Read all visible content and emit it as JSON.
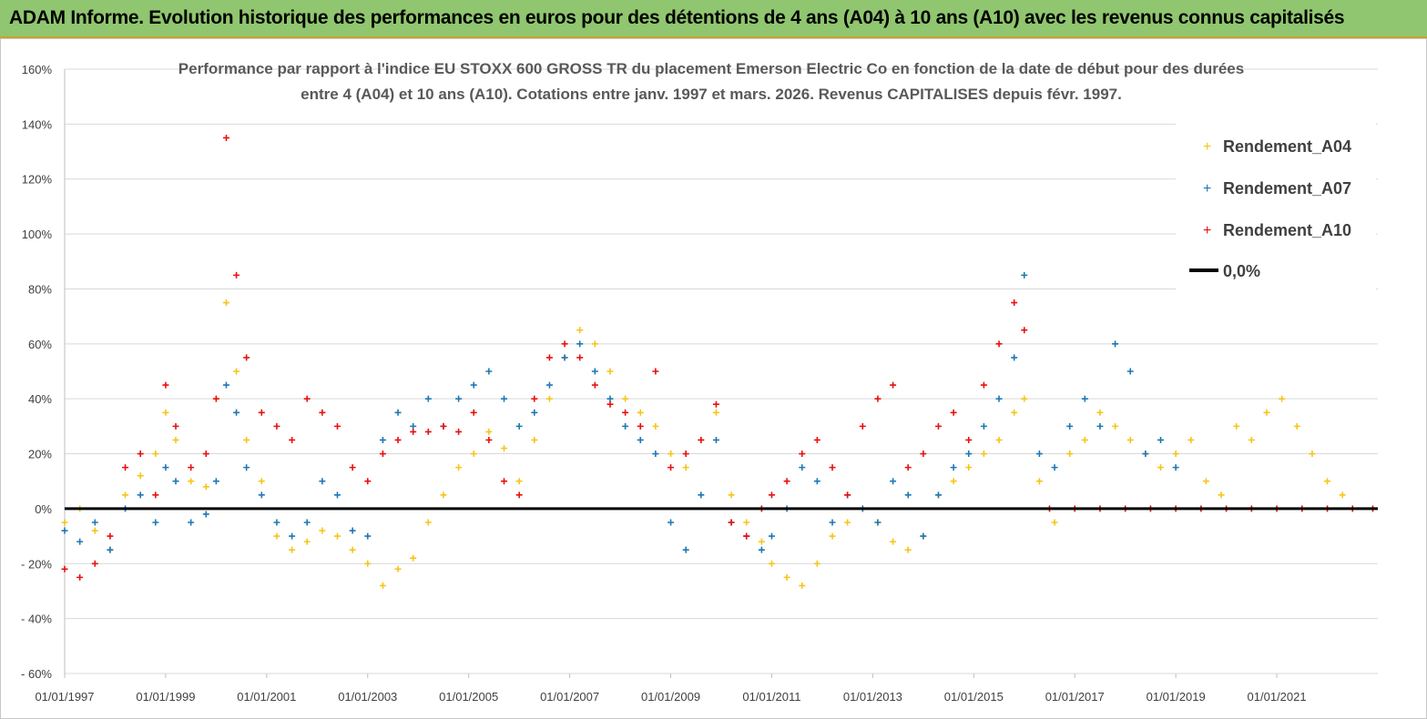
{
  "header": {
    "banner_title": "ADAM Informe. Evolution historique des performances en euros pour des détentions de 4 ans (A04) à 10 ans (A10) avec les revenus connus capitalisés"
  },
  "colors": {
    "banner_bg": "#90c66f",
    "A04": "#f5c518",
    "A07": "#1f77b4",
    "A10": "#e81010",
    "zero_line": "#000000"
  },
  "chart_data": {
    "type": "scatter",
    "title_lines": [
      "Performance par rapport à l'indice EU STOXX 600 GROSS TR  du placement Emerson Electric Co en fonction de la date de début pour des durées",
      "entre 4 (A04) et 10 ans (A10). Cotations entre janv. 1997 et mars. 2026. Revenus CAPITALISES depuis févr. 1997."
    ],
    "x_range": [
      1997.0,
      2023.0
    ],
    "y_range": [
      -60,
      160
    ],
    "y_ticks": [
      -60,
      -40,
      -20,
      0,
      20,
      40,
      60,
      80,
      100,
      120,
      140,
      160
    ],
    "y_tick_labels": [
      "- 60%",
      "- 40%",
      "- 20%",
      "0%",
      "20%",
      "40%",
      "60%",
      "80%",
      "100%",
      "120%",
      "140%",
      "160%"
    ],
    "x_ticks": [
      1997,
      1999,
      2001,
      2003,
      2005,
      2007,
      2009,
      2011,
      2013,
      2015,
      2017,
      2019,
      2021
    ],
    "x_tick_labels": [
      "01/01/1997",
      "01/01/1999",
      "01/01/2001",
      "01/01/2003",
      "01/01/2005",
      "01/01/2007",
      "01/01/2009",
      "01/01/2011",
      "01/01/2013",
      "01/01/2015",
      "01/01/2017",
      "01/01/2019",
      "01/01/2021"
    ],
    "legend": [
      "Rendement_A04",
      "Rendement_A07",
      "Rendement_A10",
      "0,0%"
    ],
    "series": [
      {
        "name": "Rendement_A04",
        "color_key": "A04",
        "x": [
          1997.0,
          1997.3,
          1997.6,
          1997.9,
          1998.2,
          1998.5,
          1998.8,
          1999.0,
          1999.2,
          1999.5,
          1999.8,
          2000.0,
          2000.2,
          2000.4,
          2000.6,
          2000.9,
          2001.2,
          2001.5,
          2001.8,
          2002.1,
          2002.4,
          2002.7,
          2003.0,
          2003.3,
          2003.6,
          2003.9,
          2004.2,
          2004.5,
          2004.8,
          2005.1,
          2005.4,
          2005.7,
          2006.0,
          2006.3,
          2006.6,
          2006.9,
          2007.2,
          2007.5,
          2007.8,
          2008.1,
          2008.4,
          2008.7,
          2009.0,
          2009.3,
          2009.6,
          2009.9,
          2010.2,
          2010.5,
          2010.8,
          2011.0,
          2011.3,
          2011.6,
          2011.9,
          2012.2,
          2012.5,
          2012.8,
          2013.1,
          2013.4,
          2013.7,
          2014.0,
          2014.3,
          2014.6,
          2014.9,
          2015.2,
          2015.5,
          2015.8,
          2016.0,
          2016.3,
          2016.6,
          2016.9,
          2017.2,
          2017.5,
          2017.8,
          2018.1,
          2018.4,
          2018.7,
          2019.0,
          2019.3,
          2019.6,
          2019.9,
          2020.2,
          2020.5,
          2020.8,
          2021.1,
          2021.4,
          2021.7,
          2022.0,
          2022.3
        ],
        "y": [
          -5,
          0,
          -8,
          -15,
          5,
          12,
          20,
          35,
          25,
          10,
          8,
          40,
          75,
          50,
          25,
          10,
          -10,
          -15,
          -12,
          -8,
          -10,
          -15,
          -20,
          -28,
          -22,
          -18,
          -5,
          5,
          15,
          20,
          28,
          22,
          10,
          25,
          40,
          55,
          65,
          60,
          50,
          40,
          35,
          30,
          20,
          15,
          25,
          35,
          5,
          -5,
          -12,
          -20,
          -25,
          -28,
          -20,
          -10,
          -5,
          0,
          -5,
          -12,
          -15,
          -10,
          5,
          10,
          15,
          20,
          25,
          35,
          40,
          10,
          -5,
          20,
          25,
          35,
          30,
          25,
          20,
          15,
          20,
          25,
          10,
          5,
          30,
          25,
          35,
          40,
          30,
          20,
          10,
          5
        ]
      },
      {
        "name": "Rendement_A07",
        "color_key": "A07",
        "x": [
          1997.0,
          1997.3,
          1997.6,
          1997.9,
          1998.2,
          1998.5,
          1998.8,
          1999.0,
          1999.2,
          1999.5,
          1999.8,
          2000.0,
          2000.2,
          2000.4,
          2000.6,
          2000.9,
          2001.2,
          2001.5,
          2001.8,
          2002.1,
          2002.4,
          2002.7,
          2003.0,
          2003.3,
          2003.6,
          2003.9,
          2004.2,
          2004.5,
          2004.8,
          2005.1,
          2005.4,
          2005.7,
          2006.0,
          2006.3,
          2006.6,
          2006.9,
          2007.2,
          2007.5,
          2007.8,
          2008.1,
          2008.4,
          2008.7,
          2009.0,
          2009.3,
          2009.6,
          2009.9,
          2010.2,
          2010.5,
          2010.8,
          2011.0,
          2011.3,
          2011.6,
          2011.9,
          2012.2,
          2012.5,
          2012.8,
          2013.1,
          2013.4,
          2013.7,
          2014.0,
          2014.3,
          2014.6,
          2014.9,
          2015.2,
          2015.5,
          2015.8,
          2016.0,
          2016.3,
          2016.6,
          2016.9,
          2017.2,
          2017.5,
          2017.8,
          2018.1,
          2018.4,
          2018.7,
          2019.0
        ],
        "y": [
          -8,
          -12,
          -5,
          -15,
          0,
          5,
          -5,
          15,
          10,
          -5,
          -2,
          10,
          45,
          35,
          15,
          5,
          -5,
          -10,
          -5,
          10,
          5,
          -8,
          -10,
          25,
          35,
          30,
          40,
          30,
          40,
          45,
          50,
          40,
          30,
          35,
          45,
          55,
          60,
          50,
          40,
          30,
          25,
          20,
          -5,
          -15,
          5,
          25,
          -5,
          -10,
          -15,
          -10,
          0,
          15,
          10,
          -5,
          5,
          0,
          -5,
          10,
          5,
          -10,
          5,
          15,
          20,
          30,
          40,
          55,
          85,
          20,
          15,
          30,
          40,
          30,
          60,
          50,
          20,
          25,
          15
        ]
      },
      {
        "name": "Rendement_A10",
        "color_key": "A10",
        "x": [
          1997.0,
          1997.3,
          1997.6,
          1997.9,
          1998.2,
          1998.5,
          1998.8,
          1999.0,
          1999.2,
          1999.5,
          1999.8,
          2000.0,
          2000.2,
          2000.4,
          2000.6,
          2000.9,
          2001.2,
          2001.5,
          2001.8,
          2002.1,
          2002.4,
          2002.7,
          2003.0,
          2003.3,
          2003.6,
          2003.9,
          2004.2,
          2004.5,
          2004.8,
          2005.1,
          2005.4,
          2005.7,
          2006.0,
          2006.3,
          2006.6,
          2006.9,
          2007.2,
          2007.5,
          2007.8,
          2008.1,
          2008.4,
          2008.7,
          2009.0,
          2009.3,
          2009.6,
          2009.9,
          2010.2,
          2010.5,
          2010.8,
          2011.0,
          2011.3,
          2011.6,
          2011.9,
          2012.2,
          2012.5,
          2012.8,
          2013.1,
          2013.4,
          2013.7,
          2014.0,
          2014.3,
          2014.6,
          2014.9,
          2015.2,
          2015.5,
          2015.8,
          2016.0,
          2016.5,
          2017.0,
          2017.5,
          2018.0,
          2018.5,
          2019.0,
          2019.5,
          2020.0,
          2020.5,
          2021.0,
          2021.5,
          2022.0,
          2022.5,
          2022.9
        ],
        "y": [
          -22,
          -25,
          -20,
          -10,
          15,
          20,
          5,
          45,
          30,
          15,
          20,
          40,
          135,
          85,
          55,
          35,
          30,
          25,
          40,
          35,
          30,
          15,
          10,
          20,
          25,
          28,
          28,
          30,
          28,
          35,
          25,
          10,
          5,
          40,
          55,
          60,
          55,
          45,
          38,
          35,
          30,
          50,
          15,
          20,
          25,
          38,
          -5,
          -10,
          0,
          5,
          10,
          20,
          25,
          15,
          5,
          30,
          40,
          45,
          15,
          20,
          30,
          35,
          25,
          45,
          60,
          75,
          65,
          0,
          0,
          0,
          0,
          0,
          0,
          0,
          0,
          0,
          0,
          0,
          0,
          0,
          0
        ]
      }
    ]
  }
}
